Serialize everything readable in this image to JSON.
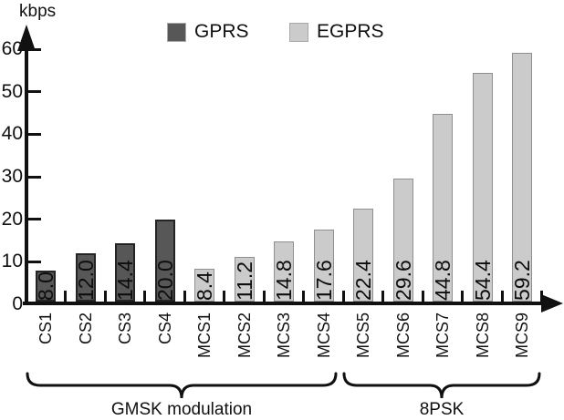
{
  "chart_data": {
    "type": "bar",
    "title": "",
    "ylabel": "kbps",
    "xlabel": "",
    "ylim": [
      0,
      60
    ],
    "yticks": [
      0,
      10,
      20,
      30,
      40,
      50,
      60
    ],
    "grid": false,
    "legend_position": "top",
    "categories": [
      "CS1",
      "CS2",
      "CS3",
      "CS4",
      "MCS1",
      "MCS2",
      "MCS3",
      "MCS4",
      "MCS5",
      "MCS6",
      "MCS7",
      "MCS8",
      "MCS9"
    ],
    "series": [
      {
        "name": "GPRS",
        "color": "#575757",
        "border_color": "#242424",
        "border_width": 2,
        "categories": [
          "CS1",
          "CS2",
          "CS3",
          "CS4"
        ],
        "values": [
          8.0,
          12.0,
          14.4,
          20.0
        ]
      },
      {
        "name": "EGPRS",
        "color": "#cbcbcb",
        "border_color": "#8f8f8f",
        "border_width": 1,
        "categories": [
          "MCS1",
          "MCS2",
          "MCS3",
          "MCS4",
          "MCS5",
          "MCS6",
          "MCS7",
          "MCS8",
          "MCS9"
        ],
        "values": [
          8.4,
          11.2,
          14.8,
          17.6,
          22.4,
          29.6,
          44.8,
          54.4,
          59.2
        ]
      }
    ],
    "bar_value_labels": [
      "8.0",
      "12.0",
      "14.4",
      "20.0",
      "8.4",
      "11.2",
      "14.8",
      "17.6",
      "22.4",
      "29.6",
      "44.8",
      "54.4",
      "59.2"
    ],
    "groups": [
      {
        "label": "GMSK modulation",
        "categories": [
          "CS1",
          "CS2",
          "CS3",
          "CS4",
          "MCS1",
          "MCS2",
          "MCS3",
          "MCS4"
        ]
      },
      {
        "label": "8PSK",
        "categories": [
          "MCS5",
          "MCS6",
          "MCS7",
          "MCS8",
          "MCS9"
        ]
      }
    ],
    "axis_color": "#111111",
    "text_color": "#111111"
  }
}
